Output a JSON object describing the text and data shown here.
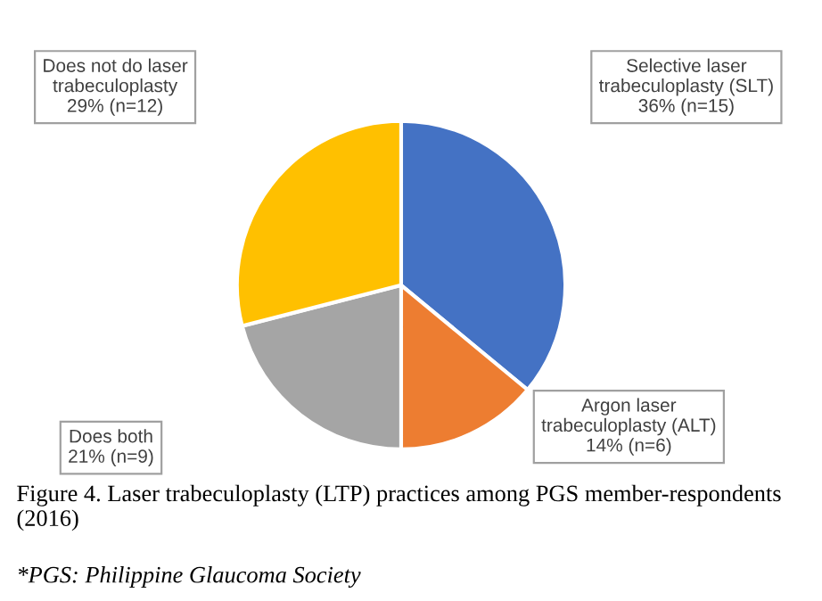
{
  "chart_data": {
    "type": "pie",
    "categories": [
      "Selective laser\ntrabeculoplasty (SLT)",
      "Argon laser\ntrabeculoplasty (ALT)",
      "Does both",
      "Does not do laser\ntrabeculoplasty"
    ],
    "values": [
      36,
      14,
      21,
      29
    ],
    "value_labels": [
      "36% (n=15)",
      "14% (n=6)",
      "21% (n=9)",
      "29% (n=12)"
    ],
    "colors": [
      "#4472c4",
      "#ed7d31",
      "#a5a5a5",
      "#ffc000"
    ],
    "annotations": [
      "Figure 4. Laser trabeculoplasty (LTP) practices among PGS member-respondents (2016)",
      "*PGS: Philippine Glaucoma Society"
    ]
  }
}
